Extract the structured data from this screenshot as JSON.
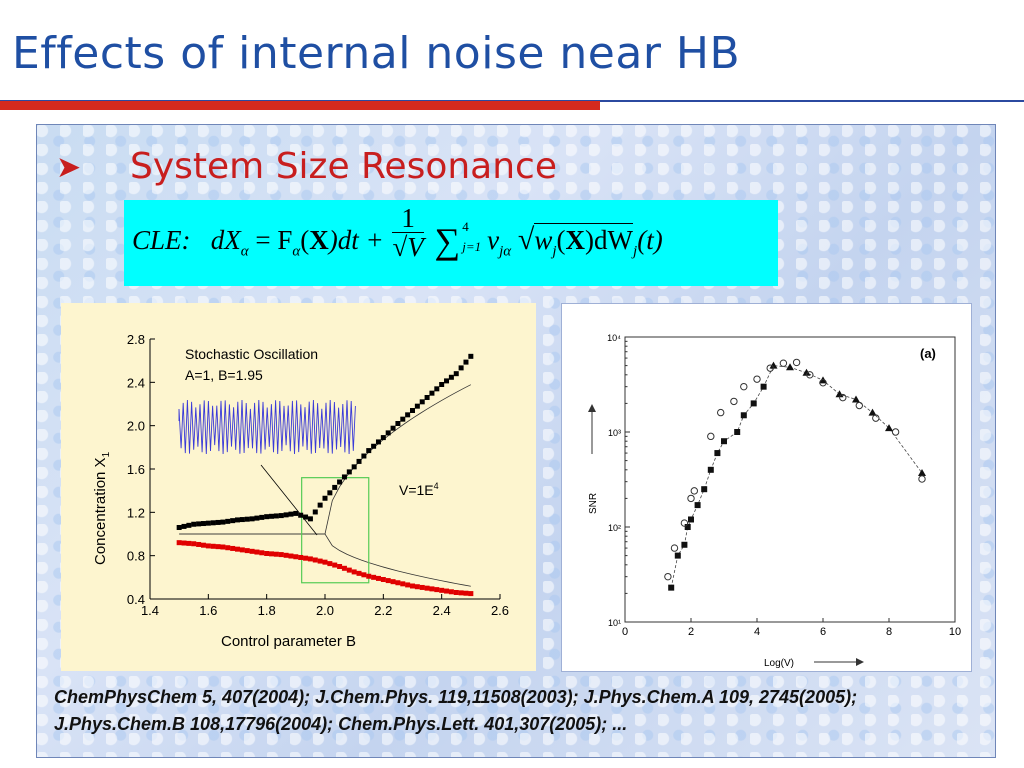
{
  "slide": {
    "title": "Effects of internal noise near HB",
    "bullet": "System Size Resonance",
    "equation": {
      "label": "CLE:",
      "parts": [
        "dX",
        "α",
        " = F",
        "α",
        "(",
        "X",
        ")dt + ",
        "1",
        "√V",
        "∑",
        "4",
        "j=1",
        "v",
        "jα",
        "w",
        "j",
        "(",
        "X",
        ")dW",
        "j",
        "(t)"
      ]
    },
    "references": "ChemPhysChem 5, 407(2004); J.Chem.Phys. 119,11508(2003); J.Phys.Chem.A 109, 2745(2005); J.Phys.Chem.B 108,17796(2004); Chem.Phys.Lett. 401,307(2005); ..."
  },
  "chart_data": [
    {
      "type": "scatter",
      "xlabel": "Control parameter B",
      "ylabel": "Concentration X1",
      "xlim": [
        1.4,
        2.6
      ],
      "ylim": [
        0.4,
        2.8
      ],
      "xticks": [
        "1.4",
        "1.6",
        "1.8",
        "2.0",
        "2.2",
        "2.4",
        "2.6"
      ],
      "yticks": [
        "0.4",
        "0.8",
        "1.2",
        "1.6",
        "2.0",
        "2.4",
        "2.8"
      ],
      "annotations": [
        "Stochastic Oscillation",
        "A=1, B=1.95",
        "V=1E4"
      ],
      "series": [
        {
          "color": "#000000",
          "x": [
            1.5,
            1.55,
            1.6,
            1.65,
            1.7,
            1.75,
            1.8,
            1.85,
            1.9,
            1.95,
            2.0,
            2.05,
            2.1,
            2.15,
            2.2,
            2.25,
            2.3,
            2.35,
            2.4,
            2.45,
            2.5
          ],
          "y": [
            1.06,
            1.09,
            1.1,
            1.11,
            1.13,
            1.14,
            1.16,
            1.17,
            1.19,
            1.14,
            1.33,
            1.48,
            1.62,
            1.77,
            1.89,
            2.02,
            2.14,
            2.26,
            2.38,
            2.48,
            2.64
          ]
        },
        {
          "color": "#e00000",
          "x": [
            1.5,
            1.55,
            1.6,
            1.65,
            1.7,
            1.75,
            1.8,
            1.85,
            1.9,
            1.95,
            2.0,
            2.05,
            2.1,
            2.15,
            2.2,
            2.25,
            2.3,
            2.35,
            2.4,
            2.45,
            2.5
          ],
          "y": [
            0.92,
            0.91,
            0.89,
            0.88,
            0.86,
            0.84,
            0.82,
            0.81,
            0.79,
            0.77,
            0.74,
            0.7,
            0.65,
            0.61,
            0.58,
            0.55,
            0.52,
            0.5,
            0.48,
            0.46,
            0.45
          ]
        }
      ]
    },
    {
      "type": "scatter",
      "panel_label": "(a)",
      "xlabel": "Log(V)",
      "ylabel": "SNR",
      "xlim": [
        0,
        10
      ],
      "xticks": [
        "0",
        "2",
        "4",
        "6",
        "8",
        "10"
      ],
      "yscale": "log",
      "ylim": [
        10,
        10000
      ],
      "yticks": [
        "10¹",
        "10²",
        "10³",
        "10⁴"
      ],
      "series": [
        {
          "marker": "square",
          "x": [
            1.4,
            1.6,
            1.8,
            1.9,
            2.0,
            2.2,
            2.4,
            2.6,
            2.8,
            3.0,
            3.4,
            3.6,
            3.9,
            4.2
          ],
          "y": [
            23,
            50,
            65,
            100,
            120,
            170,
            250,
            400,
            600,
            800,
            1000,
            1500,
            2000,
            3000
          ]
        },
        {
          "marker": "triangle",
          "x": [
            4.5,
            5.0,
            5.5,
            6.0,
            6.5,
            7.0,
            7.5,
            8.0,
            9.0
          ],
          "y": [
            5000,
            4800,
            4200,
            3500,
            2500,
            2200,
            1600,
            1100,
            370
          ]
        },
        {
          "marker": "circle",
          "x": [
            1.3,
            1.5,
            1.8,
            2.0,
            2.1,
            2.6,
            2.9,
            3.3,
            3.6,
            4.0,
            4.4,
            4.8,
            5.2,
            5.6,
            6.0,
            6.6,
            7.1,
            7.6,
            8.2,
            9.0
          ],
          "y": [
            30,
            60,
            110,
            200,
            240,
            900,
            1600,
            2100,
            3000,
            3600,
            4700,
            5300,
            5400,
            4000,
            3300,
            2300,
            1900,
            1400,
            1000,
            320
          ]
        }
      ]
    }
  ]
}
